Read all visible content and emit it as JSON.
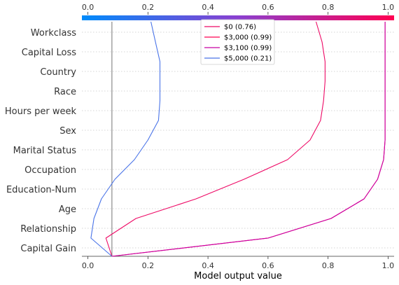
{
  "chart_data": {
    "type": "line",
    "subtype": "shap-decision-plot",
    "title": "",
    "xlabel": "Model output value",
    "ylabel": "",
    "xlim": [
      -0.02,
      1.02
    ],
    "x_ticks": [
      "0.0",
      "0.2",
      "0.4",
      "0.6",
      "0.8",
      "1.0"
    ],
    "base_value": 0.08,
    "features": [
      "Workclass",
      "Capital Loss",
      "Country",
      "Race",
      "Hours per week",
      "Sex",
      "Marital Status",
      "Occupation",
      "Education-Num",
      "Age",
      "Relationship",
      "Capital Gain"
    ],
    "colorbar": {
      "from": "#008bfb",
      "to": "#ff0052",
      "range": [
        0,
        1
      ]
    },
    "grid": "dotted horizontal",
    "legend_position": "top-center",
    "series": [
      {
        "name": "$0 (0.76)",
        "color": "#ee0a66",
        "values": [
          0.76,
          0.78,
          0.79,
          0.79,
          0.785,
          0.775,
          0.74,
          0.665,
          0.52,
          0.36,
          0.16,
          0.06,
          0.08
        ]
      },
      {
        "name": "$3,000 (0.99)",
        "color": "#ff0052",
        "values": [
          0.99,
          0.99,
          0.99,
          0.99,
          0.99,
          0.99,
          0.99,
          0.985,
          0.965,
          0.92,
          0.81,
          0.6,
          0.08
        ]
      },
      {
        "name": "$3,100 (0.99)",
        "color": "#c800a5",
        "values": [
          0.99,
          0.99,
          0.99,
          0.99,
          0.99,
          0.99,
          0.99,
          0.985,
          0.965,
          0.92,
          0.81,
          0.6,
          0.08
        ]
      },
      {
        "name": "$5,000 (0.21)",
        "color": "#4a74e8",
        "values": [
          0.21,
          0.225,
          0.24,
          0.24,
          0.24,
          0.235,
          0.2,
          0.155,
          0.09,
          0.045,
          0.02,
          0.01,
          0.08
        ]
      }
    ]
  }
}
